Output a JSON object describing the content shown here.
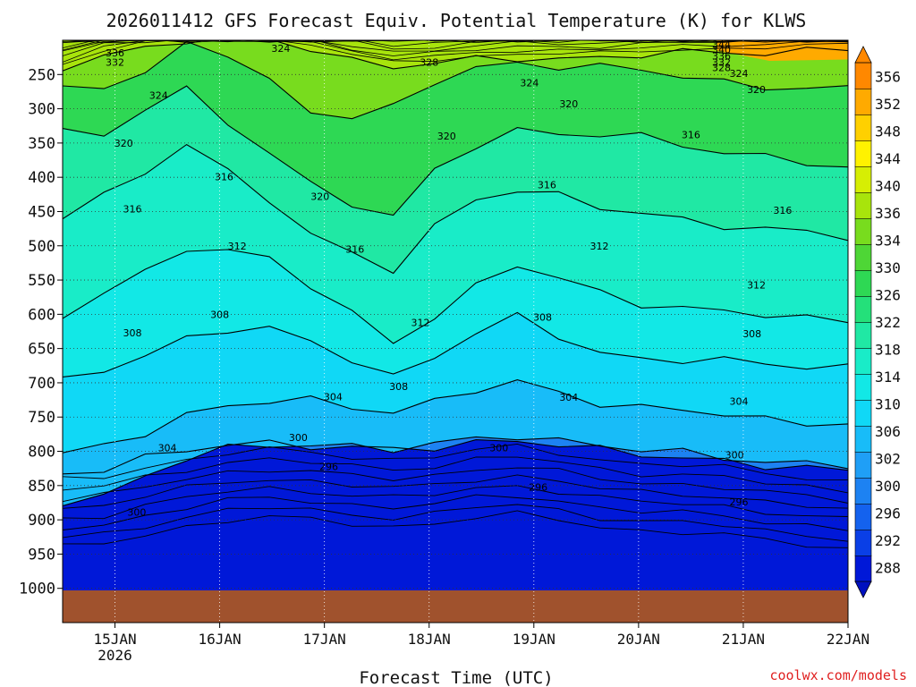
{
  "chart_data": {
    "type": "heatmap",
    "title": "2026011412 GFS Forecast Equiv. Potential Temperature (K) for KLWS",
    "xlabel": "Forecast Time (UTC)",
    "ylabel": "",
    "credit": "coolwx.com/models",
    "x_ticks": [
      {
        "label": "15JAN",
        "sublabel": "2026",
        "hour": 12
      },
      {
        "label": "16JAN",
        "sublabel": "",
        "hour": 36
      },
      {
        "label": "17JAN",
        "sublabel": "",
        "hour": 60
      },
      {
        "label": "18JAN",
        "sublabel": "",
        "hour": 84
      },
      {
        "label": "19JAN",
        "sublabel": "",
        "hour": 108
      },
      {
        "label": "20JAN",
        "sublabel": "",
        "hour": 132
      },
      {
        "label": "21JAN",
        "sublabel": "",
        "hour": 156
      },
      {
        "label": "22JAN",
        "sublabel": "",
        "hour": 180
      }
    ],
    "x_range_hours": [
      0,
      180
    ],
    "y_ticks": [
      "250",
      "300",
      "350",
      "400",
      "450",
      "500",
      "550",
      "600",
      "650",
      "700",
      "750",
      "800",
      "850",
      "900",
      "950",
      "1000"
    ],
    "y_range_hpa": [
      200,
      1050
    ],
    "surface_pressure_hpa": 960,
    "colorbar": {
      "labels": [
        "288",
        "292",
        "296",
        "300",
        "302",
        "306",
        "310",
        "314",
        "318",
        "322",
        "326",
        "330",
        "334",
        "336",
        "340",
        "344",
        "348",
        "352",
        "356"
      ],
      "colors": [
        "#0018d8",
        "#0a3fe6",
        "#1462ee",
        "#1d82f2",
        "#1f9ff6",
        "#18bcf8",
        "#10d8f6",
        "#12e8e6",
        "#19ecc8",
        "#20e8a4",
        "#24e07a",
        "#2ed854",
        "#4ed636",
        "#78dc1e",
        "#a8e40c",
        "#d6ee04",
        "#fff200",
        "#ffd000",
        "#ffaa00",
        "#ff8800"
      ]
    },
    "contour_levels": [
      {
        "value": 296,
        "p": [
          830,
          825,
          812,
          800,
          790,
          786,
          790,
          796,
          800,
          795,
          786,
          782,
          790,
          800,
          806,
          808,
          812,
          820,
          826,
          832
        ]
      },
      {
        "value": 300,
        "p": [
          872,
          864,
          835,
          812,
          798,
          790,
          788,
          792,
          798,
          792,
          782,
          775,
          783,
          792,
          800,
          803,
          807,
          813,
          818,
          822
        ]
      },
      {
        "value": 304,
        "p": [
          805,
          790,
          770,
          748,
          736,
          728,
          724,
          732,
          742,
          730,
          712,
          698,
          712,
          728,
          738,
          742,
          746,
          752,
          756,
          760
        ]
      },
      {
        "value": 308,
        "p": [
          700,
          680,
          660,
          632,
          622,
          625,
          640,
          665,
          690,
          660,
          630,
          605,
          630,
          655,
          664,
          668,
          670,
          672,
          674,
          676
        ]
      },
      {
        "value": 312,
        "p": [
          605,
          570,
          540,
          500,
          505,
          520,
          560,
          600,
          640,
          600,
          560,
          530,
          548,
          568,
          582,
          590,
          598,
          602,
          606,
          608
        ]
      },
      {
        "value": 316,
        "p": [
          455,
          430,
          395,
          350,
          390,
          430,
          485,
          515,
          535,
          470,
          430,
          418,
          430,
          445,
          450,
          460,
          470,
          478,
          482,
          486
        ]
      },
      {
        "value": 320,
        "p": [
          330,
          340,
          300,
          275,
          320,
          360,
          410,
          440,
          460,
          390,
          350,
          330,
          338,
          340,
          342,
          350,
          362,
          370,
          380,
          390
        ]
      },
      {
        "value": 324,
        "p": [
          268,
          262,
          252,
          205,
          222,
          260,
          300,
          312,
          300,
          262,
          240,
          232,
          236,
          240,
          246,
          252,
          260,
          266,
          270,
          274
        ]
      },
      {
        "value": 328,
        "p": [
          240,
          220,
          210,
          200,
          200,
          200,
          210,
          228,
          238,
          235,
          230,
          225,
          225,
          225,
          222,
          220,
          218,
          216,
          214,
          212
        ]
      }
    ],
    "contour_labels": [
      {
        "text": "336",
        "hour": 12,
        "hpa": 218
      },
      {
        "text": "332",
        "hour": 12,
        "hpa": 232
      },
      {
        "text": "324",
        "hour": 22,
        "hpa": 280
      },
      {
        "text": "324",
        "hour": 50,
        "hpa": 212
      },
      {
        "text": "328",
        "hour": 84,
        "hpa": 232
      },
      {
        "text": "324",
        "hour": 107,
        "hpa": 262
      },
      {
        "text": "320",
        "hour": 116,
        "hpa": 293
      },
      {
        "text": "320",
        "hour": 159,
        "hpa": 272
      },
      {
        "text": "344",
        "hour": 151,
        "hpa": 206
      },
      {
        "text": "340",
        "hour": 151,
        "hpa": 214
      },
      {
        "text": "336",
        "hour": 151,
        "hpa": 223
      },
      {
        "text": "332",
        "hour": 151,
        "hpa": 232
      },
      {
        "text": "328",
        "hour": 151,
        "hpa": 240
      },
      {
        "text": "324",
        "hour": 155,
        "hpa": 248
      },
      {
        "text": "320",
        "hour": 14,
        "hpa": 350
      },
      {
        "text": "316",
        "hour": 37,
        "hpa": 399
      },
      {
        "text": "320",
        "hour": 59,
        "hpa": 428
      },
      {
        "text": "320",
        "hour": 88,
        "hpa": 340
      },
      {
        "text": "316",
        "hour": 111,
        "hpa": 411
      },
      {
        "text": "316",
        "hour": 144,
        "hpa": 338
      },
      {
        "text": "316",
        "hour": 165,
        "hpa": 448
      },
      {
        "text": "316",
        "hour": 16,
        "hpa": 446
      },
      {
        "text": "312",
        "hour": 40,
        "hpa": 500
      },
      {
        "text": "316",
        "hour": 67,
        "hpa": 505
      },
      {
        "text": "312",
        "hour": 123,
        "hpa": 500
      },
      {
        "text": "312",
        "hour": 159,
        "hpa": 557
      },
      {
        "text": "308",
        "hour": 16,
        "hpa": 627
      },
      {
        "text": "308",
        "hour": 36,
        "hpa": 600
      },
      {
        "text": "312",
        "hour": 82,
        "hpa": 612
      },
      {
        "text": "308",
        "hour": 110,
        "hpa": 604
      },
      {
        "text": "308",
        "hour": 158,
        "hpa": 628
      },
      {
        "text": "304",
        "hour": 24,
        "hpa": 795
      },
      {
        "text": "304",
        "hour": 62,
        "hpa": 720
      },
      {
        "text": "308",
        "hour": 77,
        "hpa": 705
      },
      {
        "text": "304",
        "hour": 116,
        "hpa": 721
      },
      {
        "text": "304",
        "hour": 155,
        "hpa": 727
      },
      {
        "text": "300",
        "hour": 17,
        "hpa": 889
      },
      {
        "text": "300",
        "hour": 54,
        "hpa": 780
      },
      {
        "text": "296",
        "hour": 61,
        "hpa": 822
      },
      {
        "text": "300",
        "hour": 100,
        "hpa": 795
      },
      {
        "text": "296",
        "hour": 109,
        "hpa": 852
      },
      {
        "text": "300",
        "hour": 154,
        "hpa": 805
      },
      {
        "text": "296",
        "hour": 155,
        "hpa": 874
      }
    ]
  }
}
